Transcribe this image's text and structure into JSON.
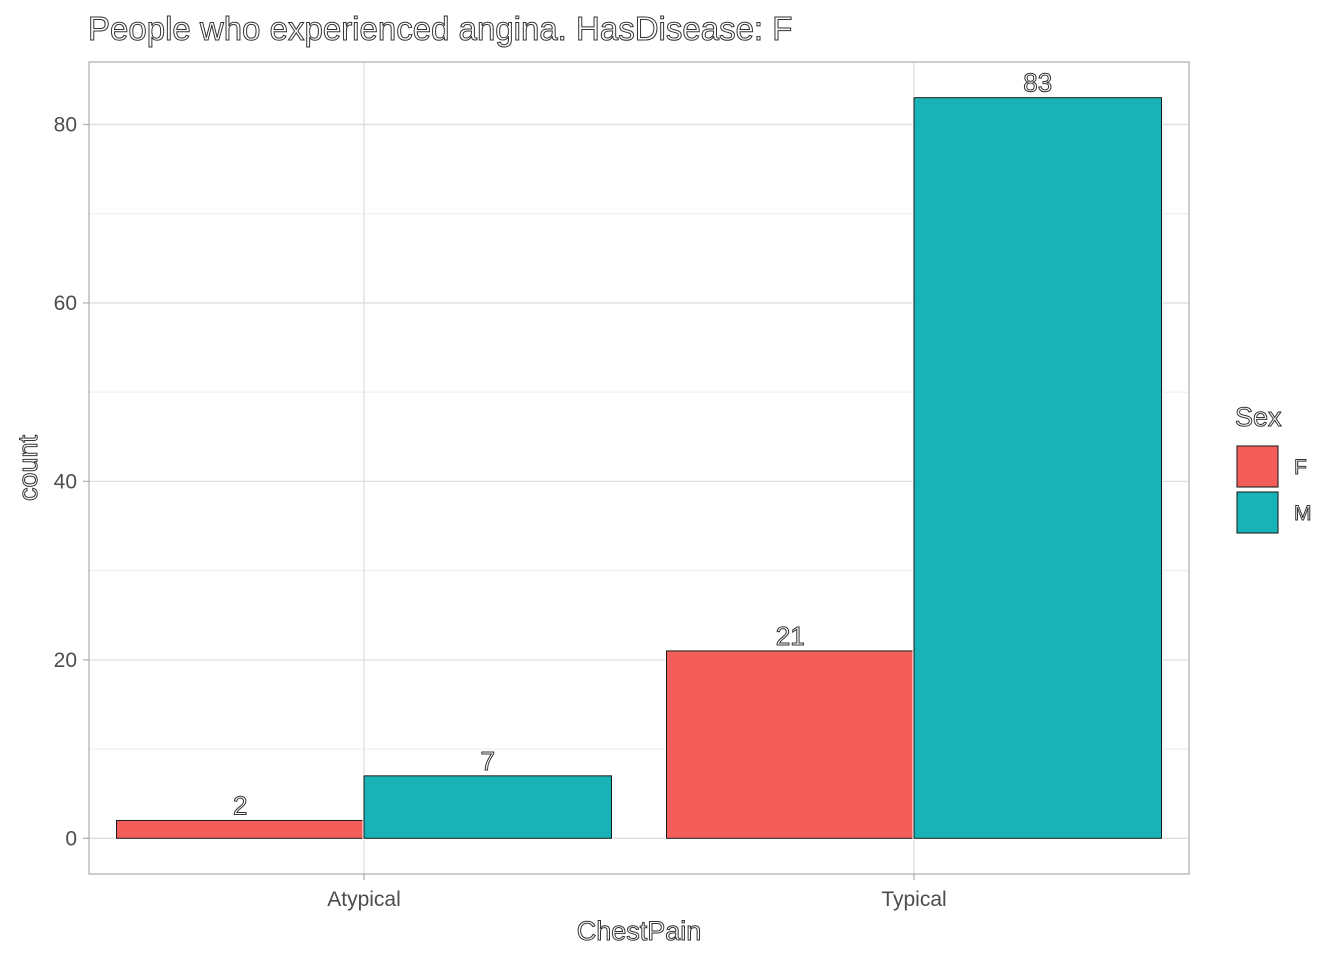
{
  "chart_data": {
    "type": "bar",
    "title": "People who experienced angina. HasDisease: F",
    "xlabel": "ChestPain",
    "ylabel": "count",
    "categories": [
      "Atypical",
      "Typical"
    ],
    "series": [
      {
        "name": "F",
        "values": [
          2,
          21
        ]
      },
      {
        "name": "M",
        "values": [
          7,
          83
        ]
      }
    ],
    "ylim": [
      -4,
      87
    ],
    "yticks": [
      0,
      20,
      40,
      60,
      80
    ],
    "grid": true,
    "legend": {
      "title": "Sex",
      "position": "right"
    },
    "colors": {
      "F": "#F35E5A",
      "M": "#17B3B7"
    }
  }
}
